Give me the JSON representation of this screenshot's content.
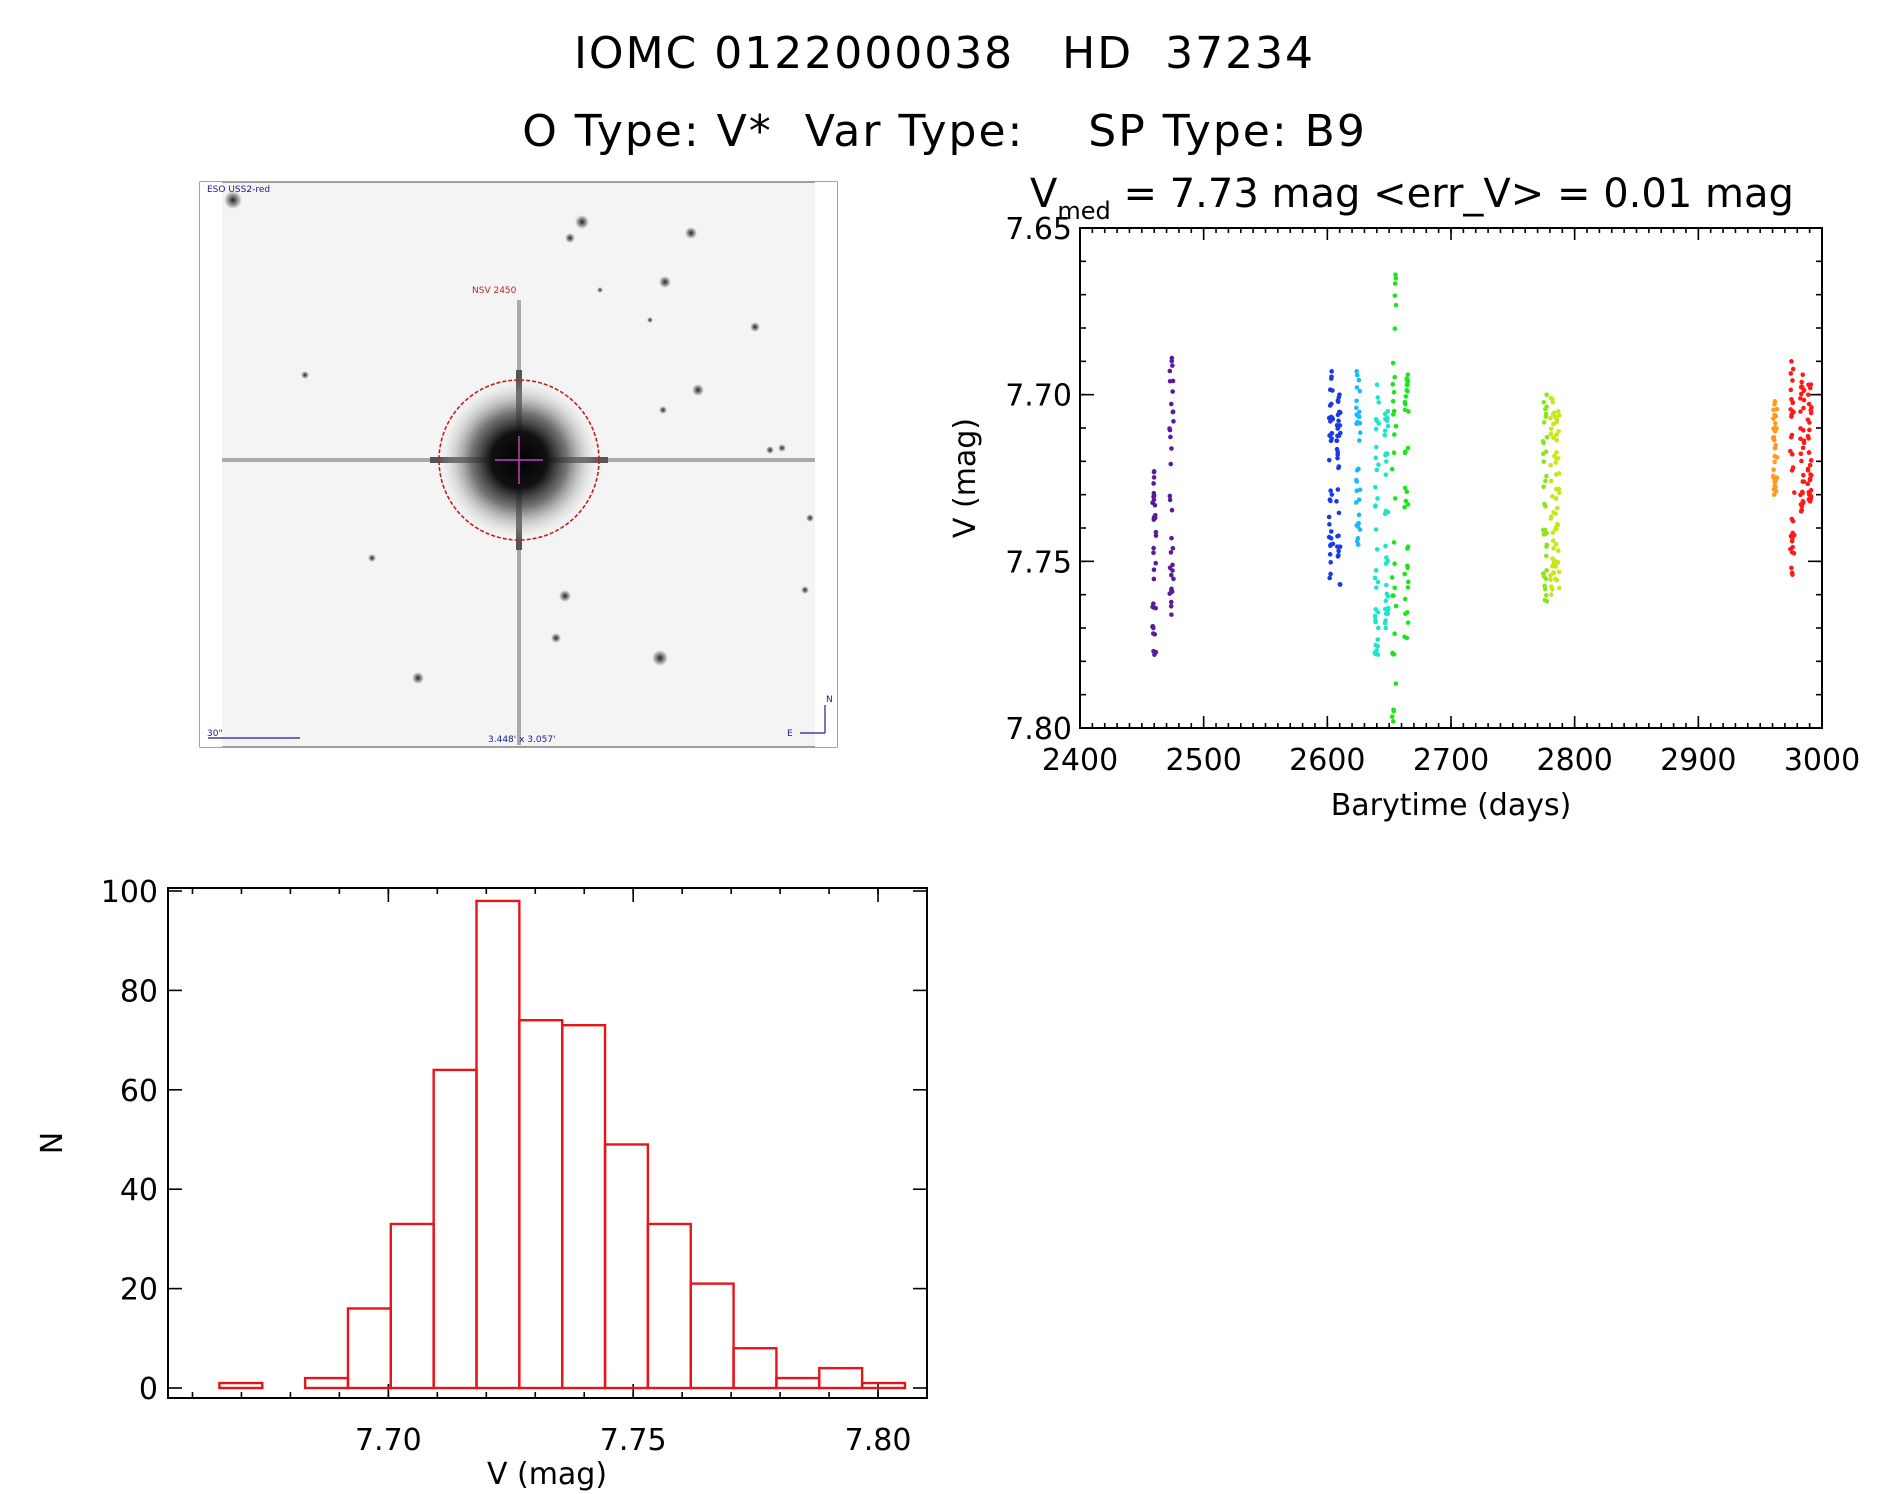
{
  "header": {
    "line1": "IOMC 0122000038   HD  37234",
    "line2": "O Type: V*  Var Type:    SP Type: B9"
  },
  "image_panel": {
    "survey_label": "ESO USS2-red",
    "object_label": "NSV 2450",
    "scale_label": "30\"",
    "size_label": "3.448' x 3.057'",
    "compass_n": "N",
    "compass_e": "E"
  },
  "chart_data": [
    {
      "type": "scatter",
      "title_main": "V",
      "title_sub": "med",
      "title_rest": " = 7.73 mag <err_V> = 0.01 mag",
      "xlabel": "Barytime (days)",
      "ylabel": "V (mag)",
      "xlim": [
        2400,
        3000
      ],
      "ylim": [
        7.65,
        7.8
      ],
      "y_inverted": true,
      "xticks": [
        "2400",
        "2500",
        "2600",
        "2700",
        "2800",
        "2900",
        "3000"
      ],
      "yticks": [
        "7.65",
        "7.70",
        "7.75",
        "7.80"
      ],
      "series": [
        {
          "color": "#5a1a9a",
          "x": [
            2460,
            2474
          ],
          "vmin": [
            7.723,
            7.689
          ],
          "vmax": [
            7.778,
            7.766
          ],
          "vcenter": [
            7.745,
            7.735
          ]
        },
        {
          "color": "#1a3ae6",
          "x": [
            2603,
            2609
          ],
          "vmin": [
            7.693,
            7.7
          ],
          "vmax": [
            7.755,
            7.757
          ],
          "vcenter": [
            7.722,
            7.722
          ]
        },
        {
          "color": "#1ab8ff",
          "x": [
            2625
          ],
          "vmin": [
            7.693
          ],
          "vmax": [
            7.745
          ],
          "vcenter": [
            7.725
          ]
        },
        {
          "color": "#1ae6c8",
          "x": [
            2640,
            2648
          ],
          "vmin": [
            7.697,
            7.705
          ],
          "vmax": [
            7.778,
            7.77
          ],
          "vcenter": [
            7.74,
            7.745
          ]
        },
        {
          "color": "#1ae61a",
          "x": [
            2654,
            2664
          ],
          "vmin": [
            7.664,
            7.694
          ],
          "vmax": [
            7.798,
            7.773
          ],
          "vcenter": [
            7.74,
            7.73
          ]
        },
        {
          "color": "#8ae61a",
          "x": [
            2776
          ],
          "vmin": [
            7.7
          ],
          "vmax": [
            7.762
          ],
          "vcenter": [
            7.735
          ]
        },
        {
          "color": "#c8e61a",
          "x": [
            2782,
            2786
          ],
          "vmin": [
            7.701,
            7.705
          ],
          "vmax": [
            7.76,
            7.758
          ],
          "vcenter": [
            7.73,
            7.732
          ]
        },
        {
          "color": "#ff9a1a",
          "x": [
            2962
          ],
          "vmin": [
            7.702
          ],
          "vmax": [
            7.73
          ],
          "vcenter": [
            7.72
          ]
        },
        {
          "color": "#ff1a1a",
          "x": [
            2976,
            2984,
            2990
          ],
          "vmin": [
            7.69,
            7.694,
            7.697
          ],
          "vmax": [
            7.754,
            7.735,
            7.732
          ],
          "vcenter": [
            7.732,
            7.718,
            7.716
          ]
        }
      ]
    },
    {
      "type": "bar",
      "subtype": "histogram",
      "xlabel": "V (mag)",
      "ylabel": "N",
      "xlim": [
        7.655,
        7.81
      ],
      "ylim": [
        0,
        100
      ],
      "xticks": [
        "7.70",
        "7.75",
        "7.80"
      ],
      "yticks": [
        "0",
        "20",
        "40",
        "60",
        "80",
        "100"
      ],
      "bar_color": "#e8141a",
      "bin_width": 0.00875,
      "bin_left": [
        7.6655,
        7.683,
        7.69175,
        7.7005,
        7.70925,
        7.718,
        7.72675,
        7.7355,
        7.74425,
        7.753,
        7.76175,
        7.7705,
        7.77925,
        7.788,
        7.79675
      ],
      "counts": [
        1,
        2,
        16,
        33,
        64,
        98,
        74,
        73,
        49,
        33,
        21,
        8,
        2,
        4,
        1
      ]
    }
  ]
}
